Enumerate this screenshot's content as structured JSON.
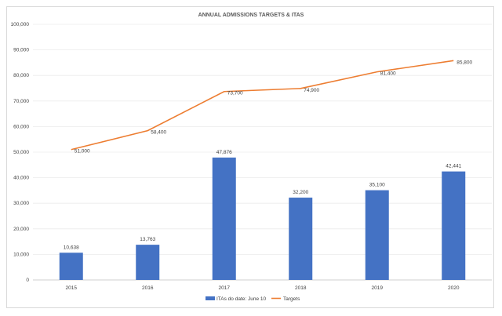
{
  "chart_data": {
    "type": "bar+line",
    "title": "ANNUAL ADMISSIONS TARGETS & ITAS",
    "categories": [
      "2015",
      "2016",
      "2017",
      "2018",
      "2019",
      "2020"
    ],
    "series": [
      {
        "name": "ITAs do date: June 10",
        "type": "bar",
        "color": "#4472c4",
        "values": [
          10638,
          13763,
          47876,
          32200,
          35100,
          42441
        ],
        "labels": [
          "10,638",
          "13,763",
          "47,876",
          "32,200",
          "35,100",
          "42,441"
        ]
      },
      {
        "name": "Targets",
        "type": "line",
        "color": "#ed7d31",
        "values": [
          51000,
          58400,
          73700,
          74900,
          81400,
          85800
        ],
        "labels": [
          "51,000",
          "58,400",
          "73,700",
          "74,900",
          "81,400",
          "85,800"
        ]
      }
    ],
    "ylim": [
      0,
      100000
    ],
    "yticks": [
      "0",
      "10,000",
      "20,000",
      "30,000",
      "40,000",
      "50,000",
      "60,000",
      "70,000",
      "80,000",
      "90,000",
      "100,000"
    ],
    "grid": true,
    "legend": "bottom"
  }
}
